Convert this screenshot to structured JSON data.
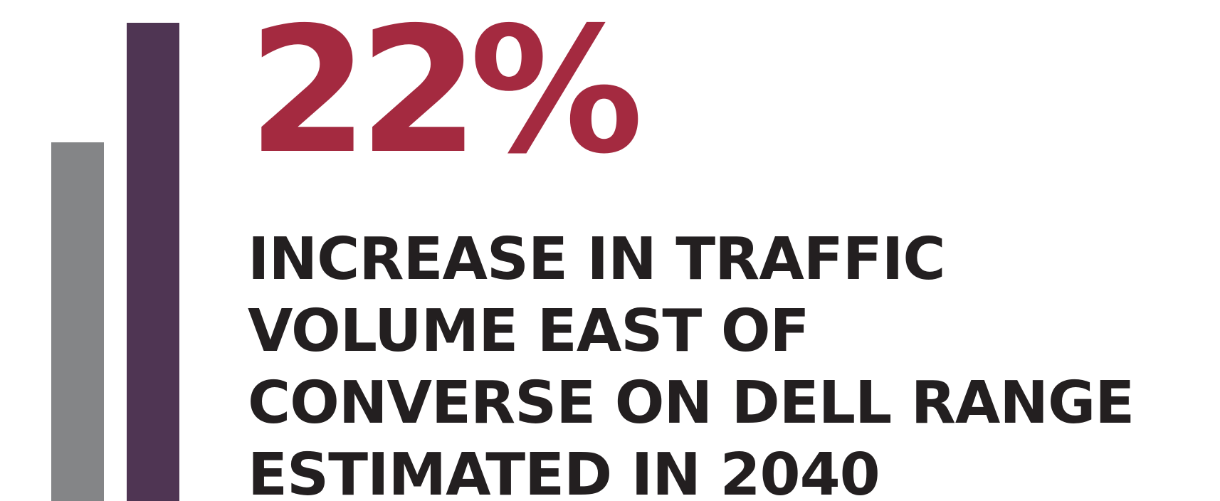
{
  "infographic": {
    "stat_value": "22%",
    "caption_lines": [
      "INCREASE IN TRAFFIC",
      "VOLUME EAST OF",
      "CONVERSE ON DELL RANGE",
      "ESTIMATED IN 2040"
    ]
  },
  "colors": {
    "accent": "#a42a40",
    "text": "#231f20",
    "bar_gray": "#848587",
    "bar_purple": "#4f3553",
    "background": "#ffffff"
  }
}
